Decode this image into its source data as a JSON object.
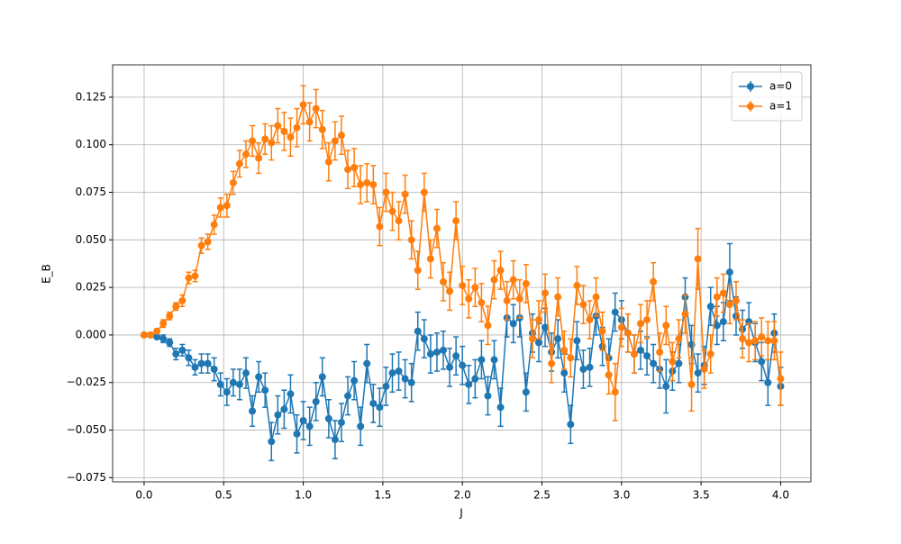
{
  "chart_data": {
    "type": "errorbar",
    "xlabel": "J",
    "ylabel": "E_B",
    "xlim": [
      -0.198,
      4.19
    ],
    "ylim": [
      -0.0772,
      0.142
    ],
    "xticks": [
      {
        "value": 0,
        "label": "0.0"
      },
      0.5,
      {
        "value": 1,
        "label": "1.0"
      },
      1.5,
      {
        "value": 2,
        "label": "2.0"
      },
      2.5,
      {
        "value": 3,
        "label": "3.0"
      },
      3.5,
      {
        "value": 4,
        "label": "4.0"
      }
    ],
    "yticks": [
      {
        "value": -0.075,
        "label": "−0.075"
      },
      {
        "value": -0.05,
        "label": "−0.050"
      },
      {
        "value": -0.025,
        "label": "−0.025"
      },
      {
        "value": 0,
        "label": "0.000"
      },
      0.025,
      {
        "value": 0.05,
        "label": "0.050"
      },
      0.075,
      {
        "value": 0.1,
        "label": "0.100"
      },
      0.125
    ],
    "grid": true,
    "legend": "upper right",
    "x": [
      0,
      0.04,
      0.08,
      0.12,
      0.16,
      0.2,
      0.24,
      0.28,
      0.32,
      0.36,
      0.4,
      0.44,
      0.48,
      0.52,
      0.56,
      0.6,
      0.64,
      0.68,
      0.72,
      0.76,
      0.8,
      0.84,
      0.88,
      0.92,
      0.96,
      1,
      1.04,
      1.08,
      1.12,
      1.16,
      1.2,
      1.24,
      1.28,
      1.32,
      1.36,
      1.4,
      1.44,
      1.48,
      1.52,
      1.56,
      1.6,
      1.64,
      1.68,
      1.72,
      1.76,
      1.8,
      1.84,
      1.88,
      1.92,
      1.96,
      2,
      2.04,
      2.08,
      2.12,
      2.16,
      2.2,
      2.24,
      2.28,
      2.32,
      2.36,
      2.4,
      2.44,
      2.48,
      2.52,
      2.56,
      2.6,
      2.64,
      2.68,
      2.72,
      2.76,
      2.8,
      2.84,
      2.88,
      2.92,
      2.96,
      3,
      3.04,
      3.08,
      3.12,
      3.16,
      3.2,
      3.24,
      3.28,
      3.32,
      3.36,
      3.4,
      3.44,
      3.48,
      3.52,
      3.56,
      3.6,
      3.64,
      3.68,
      3.72,
      3.76,
      3.8,
      3.84,
      3.88,
      3.92,
      3.96,
      4
    ],
    "series": [
      {
        "name": "a=0",
        "color": "#1f77b4",
        "values": [
          0,
          0,
          -0.001,
          -0.002,
          -0.004,
          -0.01,
          -0.008,
          -0.012,
          -0.017,
          -0.015,
          -0.015,
          -0.018,
          -0.026,
          -0.03,
          -0.025,
          -0.026,
          -0.02,
          -0.04,
          -0.022,
          -0.029,
          -0.056,
          -0.042,
          -0.039,
          -0.031,
          -0.052,
          -0.045,
          -0.048,
          -0.035,
          -0.022,
          -0.044,
          -0.055,
          -0.046,
          -0.032,
          -0.024,
          -0.048,
          -0.015,
          -0.036,
          -0.038,
          -0.027,
          -0.02,
          -0.019,
          -0.023,
          -0.025,
          0.002,
          -0.002,
          -0.01,
          -0.009,
          -0.008,
          -0.017,
          -0.011,
          -0.016,
          -0.026,
          -0.023,
          -0.013,
          -0.032,
          -0.013,
          -0.038,
          0.009,
          0.006,
          0.009,
          -0.03,
          0.001,
          -0.004,
          0.004,
          -0.009,
          -0.002,
          -0.02,
          -0.047,
          -0.003,
          -0.018,
          -0.017,
          0.01,
          -0.006,
          -0.012,
          0.012,
          0.008,
          0.001,
          -0.01,
          -0.008,
          -0.011,
          -0.015,
          -0.018,
          -0.027,
          -0.019,
          -0.015,
          0.02,
          -0.005,
          -0.02,
          -0.016,
          0.015,
          0.005,
          0.007,
          0.033,
          0.01,
          0.003,
          0.007,
          -0.004,
          -0.014,
          -0.025,
          0.001,
          -0.027
        ],
        "errors": [
          0,
          0.001,
          0.001,
          0.002,
          0.002,
          0.003,
          0.003,
          0.004,
          0.004,
          0.005,
          0.005,
          0.006,
          0.006,
          0.007,
          0.007,
          0.008,
          0.008,
          0.008,
          0.008,
          0.009,
          0.01,
          0.01,
          0.01,
          0.01,
          0.01,
          0.01,
          0.01,
          0.01,
          0.01,
          0.01,
          0.01,
          0.01,
          0.01,
          0.01,
          0.01,
          0.01,
          0.01,
          0.01,
          0.01,
          0.01,
          0.01,
          0.01,
          0.01,
          0.01,
          0.01,
          0.01,
          0.01,
          0.01,
          0.01,
          0.01,
          0.01,
          0.01,
          0.01,
          0.01,
          0.01,
          0.01,
          0.01,
          0.01,
          0.01,
          0.01,
          0.01,
          0.01,
          0.01,
          0.01,
          0.01,
          0.01,
          0.01,
          0.01,
          0.01,
          0.01,
          0.01,
          0.01,
          0.01,
          0.01,
          0.01,
          0.01,
          0.01,
          0.01,
          0.01,
          0.01,
          0.01,
          0.01,
          0.014,
          0.01,
          0.01,
          0.01,
          0.01,
          0.01,
          0.01,
          0.01,
          0.01,
          0.01,
          0.015,
          0.01,
          0.01,
          0.01,
          0.01,
          0.01,
          0.012,
          0.01,
          0.01
        ]
      },
      {
        "name": "a=1",
        "color": "#ff7f0e",
        "values": [
          0,
          0,
          0.002,
          0.006,
          0.01,
          0.015,
          0.018,
          0.03,
          0.031,
          0.047,
          0.049,
          0.058,
          0.067,
          0.068,
          0.08,
          0.09,
          0.095,
          0.102,
          0.093,
          0.103,
          0.101,
          0.11,
          0.107,
          0.104,
          0.109,
          0.121,
          0.112,
          0.119,
          0.108,
          0.091,
          0.102,
          0.105,
          0.087,
          0.088,
          0.079,
          0.08,
          0.079,
          0.057,
          0.075,
          0.065,
          0.06,
          0.074,
          0.05,
          0.034,
          0.075,
          0.04,
          0.056,
          0.028,
          0.023,
          0.06,
          0.026,
          0.019,
          0.025,
          0.017,
          0.005,
          0.029,
          0.034,
          0.018,
          0.029,
          0.019,
          0.027,
          -0.002,
          0.008,
          0.022,
          -0.015,
          0.02,
          -0.008,
          -0.012,
          0.026,
          0.016,
          0.008,
          0.02,
          0.002,
          -0.021,
          -0.03,
          0.004,
          0.001,
          -0.01,
          0.006,
          0.008,
          0.028,
          -0.009,
          0.005,
          -0.014,
          -0.002,
          0.011,
          -0.026,
          0.04,
          -0.018,
          -0.01,
          0.02,
          0.022,
          0.016,
          0.018,
          -0.002,
          -0.004,
          -0.003,
          -0.001,
          -0.003,
          -0.003,
          -0.023
        ],
        "errors": [
          0,
          0.001,
          0.001,
          0.002,
          0.002,
          0.002,
          0.003,
          0.003,
          0.003,
          0.004,
          0.004,
          0.005,
          0.005,
          0.006,
          0.006,
          0.007,
          0.007,
          0.008,
          0.008,
          0.008,
          0.009,
          0.009,
          0.01,
          0.01,
          0.01,
          0.01,
          0.01,
          0.01,
          0.01,
          0.01,
          0.01,
          0.01,
          0.01,
          0.01,
          0.01,
          0.01,
          0.01,
          0.01,
          0.01,
          0.01,
          0.01,
          0.01,
          0.01,
          0.01,
          0.01,
          0.01,
          0.01,
          0.01,
          0.01,
          0.01,
          0.01,
          0.01,
          0.01,
          0.01,
          0.01,
          0.01,
          0.01,
          0.01,
          0.01,
          0.01,
          0.01,
          0.01,
          0.01,
          0.01,
          0.01,
          0.01,
          0.01,
          0.01,
          0.01,
          0.01,
          0.01,
          0.01,
          0.01,
          0.01,
          0.015,
          0.01,
          0.01,
          0.01,
          0.01,
          0.01,
          0.01,
          0.01,
          0.01,
          0.01,
          0.01,
          0.01,
          0.014,
          0.016,
          0.01,
          0.01,
          0.01,
          0.01,
          0.01,
          0.01,
          0.01,
          0.01,
          0.01,
          0.01,
          0.01,
          0.01,
          0.014
        ]
      }
    ]
  }
}
